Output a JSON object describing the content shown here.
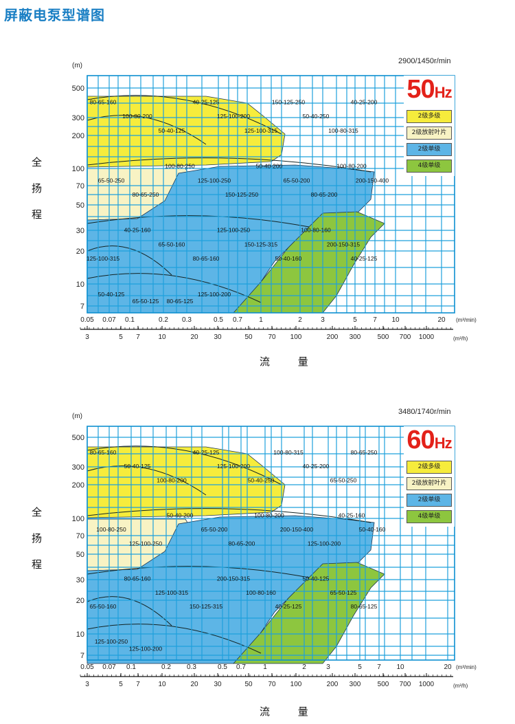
{
  "page_title": "屏蔽电泵型谱图",
  "ylabel_chars": [
    "全",
    "扬",
    "程"
  ],
  "xlabel": "流 量",
  "y_unit": "(m)",
  "x_unit_top": "(m³/min)",
  "x_unit_bottom": "(m³/h)",
  "legend_labels": [
    "2级多级",
    "2级放射叶片",
    "2级单级",
    "4级单级"
  ],
  "colors": {
    "yellow": "#f6ec3c",
    "cream": "#f8f3c4",
    "blue": "#5db5e6",
    "green": "#8dc63f",
    "grid": "#1ea0dc",
    "frame": "#0d8fd0"
  },
  "chart_data": [
    {
      "type": "area",
      "title": "",
      "hz_text": "50",
      "hz_unit": "Hz",
      "speed": "2900/1450r/min",
      "y_ticks": [
        "500",
        "300",
        "200",
        "100",
        "70",
        "50",
        "30",
        "20",
        "10",
        "7"
      ],
      "x_ticks_top": [
        "0.05",
        "0.07",
        "0.1",
        "0.2",
        "0.3",
        "0.5",
        "0.7",
        "1",
        "2",
        "3",
        "5",
        "7",
        "10",
        "20"
      ],
      "x_ticks_bottom": [
        "3",
        "5",
        "7",
        "10",
        "20",
        "30",
        "50",
        "70",
        "100",
        "200",
        "300",
        "500",
        "700",
        "1000"
      ],
      "labels": [
        "80-65-160",
        "100-80-200",
        "50-40-125",
        "40-25-125",
        "125-100-200",
        "125-100-315",
        "150-125-250",
        "50-40-250",
        "100-80-315",
        "40-25-200",
        "65-50-250",
        "80-65-250",
        "100-80-250",
        "125-100-250",
        "150-125-250",
        "50-40-200",
        "65-50-200",
        "80-65-200",
        "100-80-200",
        "200-150-400",
        "125-100-315",
        "40-25-160",
        "65-50-160",
        "80-65-160",
        "125-100-250",
        "150-125-315",
        "50-40-160",
        "100-80-160",
        "200-150-315",
        "40-25-125",
        "50-40-125",
        "65-50-125",
        "80-65-125",
        "125-100-200"
      ]
    },
    {
      "type": "area",
      "title": "",
      "hz_text": "60",
      "hz_unit": "Hz",
      "speed": "3480/1740r/min",
      "y_ticks": [
        "500",
        "300",
        "200",
        "100",
        "70",
        "50",
        "30",
        "20",
        "10",
        "7"
      ],
      "x_ticks_top": [
        "0.05",
        "0.07",
        "0.1",
        "0.2",
        "0.3",
        "0.5",
        "0.7",
        "1",
        "2",
        "3",
        "5",
        "7",
        "10",
        "20"
      ],
      "x_ticks_bottom": [
        "3",
        "5",
        "7",
        "10",
        "20",
        "30",
        "50",
        "70",
        "100",
        "200",
        "300",
        "500",
        "700",
        "1000"
      ],
      "labels": [
        "80-65-160",
        "50-40-125",
        "100-80-200",
        "40-25-125",
        "125-100-200",
        "50-40-250",
        "100-80-315",
        "40-25-200",
        "65-50-250",
        "80-65-250",
        "100-80-250",
        "125-100-250",
        "50-40-200",
        "65-50-200",
        "80-65-200",
        "100-80-200",
        "200-150-400",
        "125-100-200",
        "40-25-160",
        "50-40-160",
        "65-50-160",
        "80-65-160",
        "125-100-315",
        "150-125-315",
        "200-150-315",
        "100-80-160",
        "40-25-125",
        "50-40-125",
        "65-50-125",
        "80-65-125",
        "125-100-250",
        "125-100-200"
      ]
    }
  ]
}
